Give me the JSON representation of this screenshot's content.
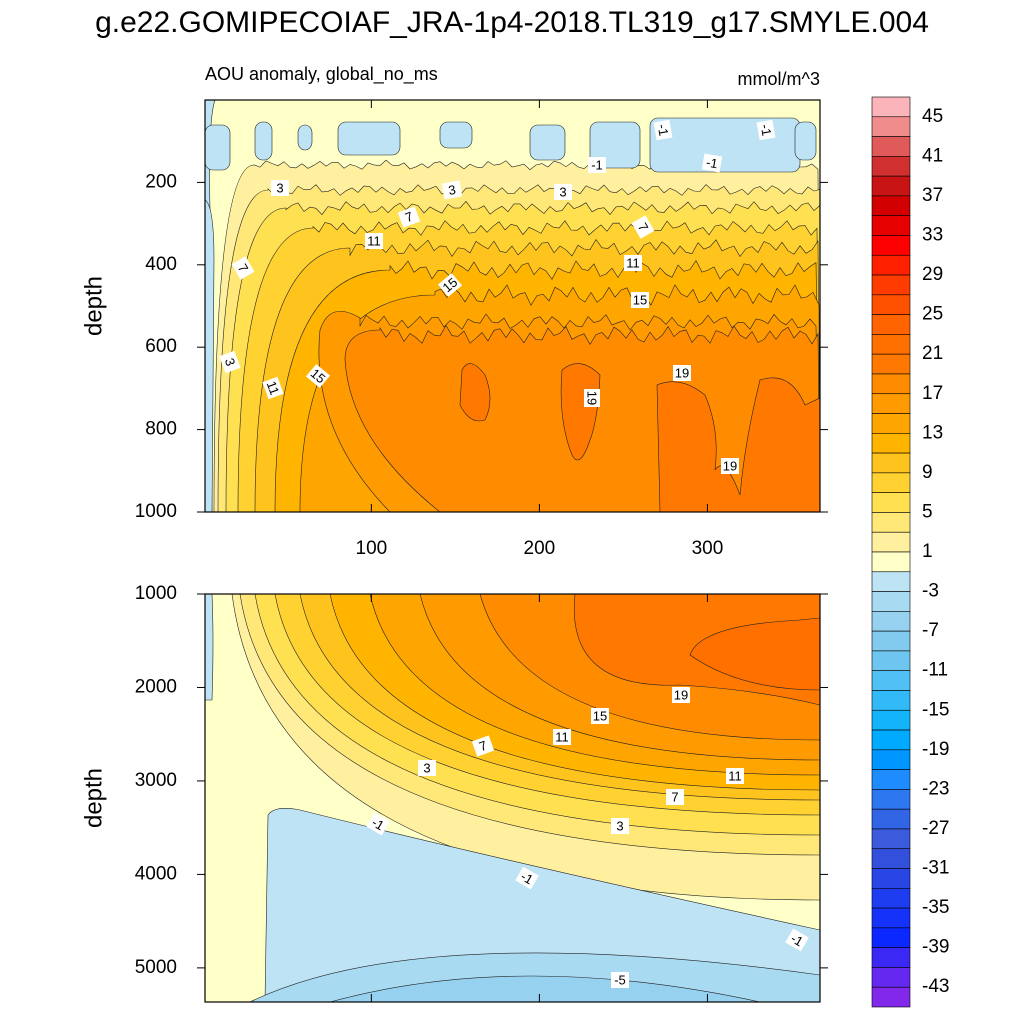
{
  "title": "g.e22.GOMIPECOIAF_JRA-1p4-2018.TL319_g17.SMYLE.004",
  "chart_data": [
    {
      "type": "contour",
      "subtitle_left": "AOU anomaly, global_no_ms",
      "subtitle_right": "mmol/m^3",
      "ylabel": "depth",
      "xlim": [
        1,
        367
      ],
      "xticks": [
        100,
        200,
        300
      ],
      "ylim": [
        0,
        1000
      ],
      "yticks": [
        200,
        400,
        600,
        800,
        1000
      ],
      "y_reversed": true,
      "contour_labels": [
        -1,
        -1,
        -1,
        -1,
        3,
        3,
        3,
        7,
        7,
        11,
        11,
        15,
        15,
        7,
        3,
        11,
        15,
        19,
        19,
        19
      ]
    },
    {
      "type": "contour",
      "ylabel": "depth",
      "xlim": [
        1,
        367
      ],
      "xticks": [
        100,
        200,
        300
      ],
      "ylim": [
        1000,
        5365
      ],
      "yticks": [
        1000,
        2000,
        3000,
        4000,
        5000
      ],
      "y_reversed": true,
      "contour_labels": [
        19,
        15,
        11,
        7,
        3,
        11,
        7,
        3,
        -1,
        -1,
        -1,
        -5
      ]
    }
  ],
  "colorbar": {
    "levels": [
      45,
      43,
      41,
      39,
      37,
      35,
      33,
      31,
      29,
      27,
      25,
      23,
      21,
      19,
      17,
      15,
      13,
      11,
      9,
      7,
      5,
      3,
      1,
      -1,
      -3,
      -5,
      -7,
      -9,
      -11,
      -13,
      -15,
      -17,
      -19,
      -21,
      -23,
      -25,
      -27,
      -29,
      -31,
      -33,
      -35,
      -37,
      -39,
      -41,
      -43
    ],
    "ticks": [
      45,
      41,
      37,
      33,
      29,
      25,
      21,
      17,
      13,
      9,
      5,
      1,
      -3,
      -7,
      -11,
      -15,
      -19,
      -23,
      -27,
      -31,
      -35,
      -39,
      -43
    ],
    "colors": [
      "#fbb4b9",
      "#f08c8c",
      "#e05a5a",
      "#d03030",
      "#c81414",
      "#d20000",
      "#e60000",
      "#ff0000",
      "#ff2000",
      "#ff3c00",
      "#ff5000",
      "#ff6400",
      "#ff7000",
      "#ff7800",
      "#ff8c00",
      "#ff9a00",
      "#ffa500",
      "#ffb400",
      "#ffc31e",
      "#ffd232",
      "#ffe050",
      "#ffe878",
      "#fff0a0",
      "#ffffc8",
      "#bde3f5",
      "#a8daf2",
      "#96d2f0",
      "#82caee",
      "#6ec5f0",
      "#50c0f5",
      "#32baf8",
      "#14b4fa",
      "#00aaff",
      "#0096ff",
      "#1e8cff",
      "#2d78f0",
      "#3264e6",
      "#3c5adc",
      "#3250dc",
      "#2846e6",
      "#1e3cf0",
      "#1432fa",
      "#0a28ff",
      "#3c28f5",
      "#6428f0",
      "#8228eb"
    ]
  }
}
